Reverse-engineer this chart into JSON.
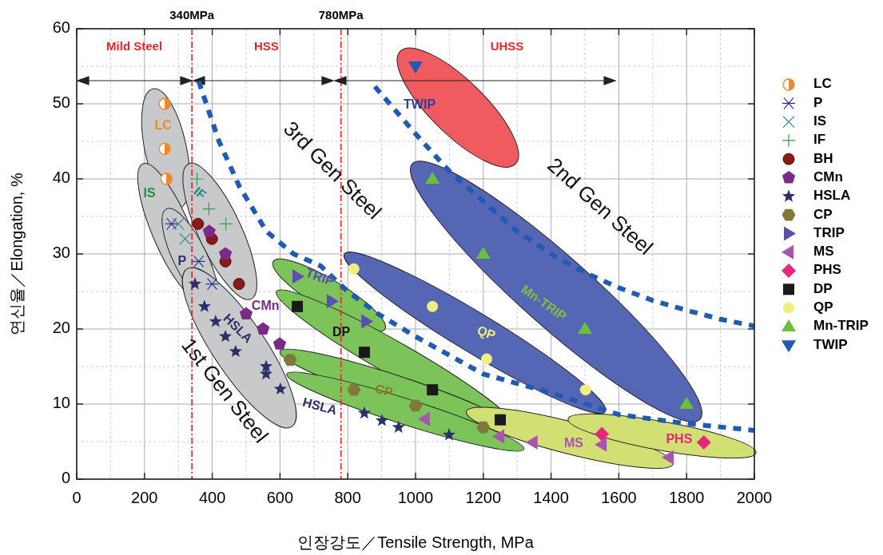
{
  "chart_data": {
    "type": "scatter",
    "xlabel": "인장강도／Tensile Strength, MPa",
    "ylabel": "연신율／Elongation, %",
    "xlim": [
      0,
      2000
    ],
    "ylim": [
      0,
      60
    ],
    "xticks": [
      0,
      200,
      400,
      600,
      800,
      1000,
      1200,
      1400,
      1600,
      1800,
      2000
    ],
    "yticks": [
      0,
      10,
      20,
      30,
      40,
      50,
      60
    ],
    "grid": true,
    "legend": "top right",
    "series": [
      {
        "name": "LC",
        "color": "#f0892a",
        "marker": "circle",
        "x": [
          260,
          260,
          265
        ],
        "values": [
          50,
          44,
          40
        ]
      },
      {
        "name": "P",
        "color": "#2b3a8f",
        "marker": "cross",
        "x": [
          280,
          360,
          400
        ],
        "values": [
          34,
          29,
          26
        ]
      },
      {
        "name": "IS",
        "color": "#2a8a80",
        "marker": "cross",
        "x": [
          300,
          320
        ],
        "values": [
          34,
          32
        ]
      },
      {
        "name": "IF",
        "color": "#3a9a4a",
        "marker": "cross",
        "x": [
          355,
          390,
          440
        ],
        "values": [
          40,
          36,
          34
        ]
      },
      {
        "name": "BH",
        "color": "#8a1a1a",
        "marker": "circle",
        "x": [
          358,
          399,
          439,
          479
        ],
        "values": [
          34,
          32,
          29,
          26
        ]
      },
      {
        "name": "CMn",
        "color": "#7b2a8a",
        "x": [
          391,
          439,
          500,
          550,
          599
        ],
        "values": [
          33,
          30,
          22,
          20,
          18
        ]
      },
      {
        "name": "HSLA",
        "color": "#2b2f6a",
        "marker": "star",
        "x": [
          349,
          377,
          410,
          439,
          469,
          559,
          559,
          601,
          849,
          901,
          950,
          1099
        ],
        "values": [
          26,
          23,
          21,
          19,
          17,
          15,
          14,
          12,
          8.8,
          7.8,
          6.9,
          5.9
        ]
      },
      {
        "name": "CP",
        "color": "#7f7a3a",
        "x": [
          630,
          818,
          1000,
          1200
        ],
        "values": [
          15.9,
          11.9,
          9.8,
          6.9
        ]
      },
      {
        "name": "TRIP",
        "color": "#5a4fb0",
        "marker": "triangle",
        "x": [
          651,
          752,
          854
        ],
        "values": [
          27,
          23.7,
          21
        ]
      },
      {
        "name": "MS",
        "color": "#a855b0",
        "marker": "triangle",
        "x": [
          1028,
          1248,
          1346,
          1550,
          1748
        ],
        "values": [
          8,
          5.7,
          4.9,
          4.6,
          2.9
        ]
      },
      {
        "name": "PHS",
        "color": "#e6277f",
        "marker": "diamond",
        "x": [
          1550,
          1851
        ],
        "values": [
          6,
          4.9
        ]
      },
      {
        "name": "DP",
        "color": "#1a1a1a",
        "marker": "square",
        "x": [
          651,
          849,
          1050,
          1250
        ],
        "values": [
          23,
          16.9,
          11.9,
          7.9
        ]
      },
      {
        "name": "QP",
        "color": "#f0ee80",
        "marker": "circle",
        "x": [
          818,
          1050,
          1210,
          1502
        ],
        "values": [
          28,
          23,
          16,
          11.9
        ]
      },
      {
        "name": "Mn-TRIP",
        "color": "#6cbf3a",
        "marker": "triangle",
        "x": [
          1050,
          1200,
          1500,
          1800
        ],
        "values": [
          40,
          30,
          20,
          10
        ]
      },
      {
        "name": "TWIP",
        "color": "#2159b5",
        "marker": "triangle",
        "x": [
          1000
        ],
        "values": [
          55
        ]
      },
      {
        "type": "line",
        "color": "#1f5bb5",
        "line_style": "dashed",
        "x": [
          360,
          420,
          480,
          560,
          640,
          720,
          800,
          890,
          1000,
          1100,
          1200,
          1400,
          1600,
          1800,
          2000
        ],
        "values": [
          53,
          45,
          39,
          33,
          30,
          28.4,
          25,
          22,
          19,
          16.5,
          14,
          11.5,
          8.6,
          7.4,
          6.5
        ]
      },
      {
        "type": "line",
        "color": "#1f5bb5",
        "line_style": "dashed",
        "x": [
          880,
          1000,
          1100,
          1200,
          1300,
          1400,
          1500,
          1600,
          1700,
          1800,
          1900,
          2000
        ],
        "values": [
          52.3,
          46,
          41,
          37,
          33,
          30,
          27.5,
          25.5,
          23.8,
          22.5,
          21.3,
          20.4
        ]
      }
    ],
    "ref_lines": [
      {
        "axis": "x",
        "value": 340,
        "label": "340MPa",
        "color": "#e8262a",
        "line_style": "dashdot"
      },
      {
        "axis": "x",
        "value": 780,
        "label": "780MPa",
        "color": "#e8262a",
        "line_style": "dashdot"
      }
    ],
    "annotations": [
      "Mild Steel",
      "HSS",
      "UHSS",
      "LC",
      "IS",
      "IF",
      "P",
      "CMn",
      "HSLA",
      "TRIP",
      "DP",
      "CP",
      "HSLA",
      "QP",
      "Mn-TRIP",
      "TWIP",
      "MS",
      "PHS",
      "1st Gen Steel",
      "3rd Gen Steel",
      "2nd Gen Steel"
    ]
  }
}
